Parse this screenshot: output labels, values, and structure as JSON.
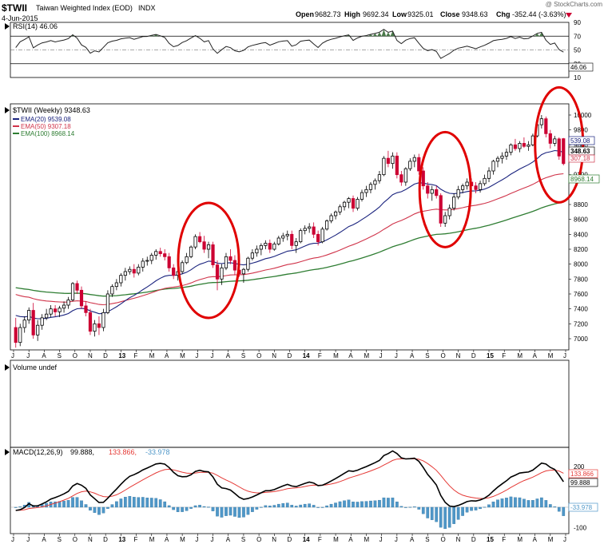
{
  "header": {
    "symbol": "$TWII",
    "name": "Taiwan Weighted Index (EOD)",
    "exchange": "INDX",
    "date": "4-Jun-2015",
    "watermark": "@ StockCharts.com",
    "quote": {
      "open_label": "Open",
      "open": "9682.73",
      "high_label": "High",
      "high": "9692.34",
      "low_label": "Low",
      "low": "9325.01",
      "close_label": "Close",
      "close": "9348.63",
      "chg_label": "Chg",
      "chg": "-352.44 (-3.63%)",
      "chg_icon": "triangle-down-icon"
    }
  },
  "colors": {
    "candle_up": "#000000",
    "candle_down": "#cc0033",
    "ema20": "#1a237e",
    "ema50": "#d0344a",
    "ema100": "#2e7d32",
    "rsi": "#222222",
    "rsi_overbought_fill": "#4a7a4a",
    "macd": "#000000",
    "signal": "#e53935",
    "histogram": "#4f97c8",
    "circle": "#e00000"
  },
  "rsi_panel": {
    "legend": "RSI(14) 46.06",
    "value_box": "46.06",
    "levels": [
      90,
      70,
      50,
      30,
      10
    ],
    "level_labels": [
      "90",
      "70",
      "50",
      "30",
      "10"
    ]
  },
  "price_panel": {
    "legend": {
      "main": "$TWII (Weekly) 9348.63",
      "ema20": "EMA(20) 9539.08",
      "ema50": "EMA(50) 9307.18",
      "ema100": "EMA(100) 8968.14"
    },
    "y_ticks": [
      "10000",
      "9800",
      "9600",
      "9200",
      "8800",
      "8600",
      "8400",
      "8200",
      "8000",
      "7800",
      "7600",
      "7400",
      "7200",
      "7000"
    ],
    "boxes": {
      "ema20": "539.08",
      "close": "348.63",
      "ema50": "307.18",
      "ema100": "8968.14"
    }
  },
  "volume_panel": {
    "legend": "Volume undef"
  },
  "macd_panel": {
    "legend_main": "MACD(12,26,9)",
    "legend_macd": "99.888,",
    "legend_signal": "133.866,",
    "legend_hist": "-33.978",
    "y_ticks": [
      "200",
      "0",
      "-100"
    ],
    "boxes": {
      "signal": "133.866",
      "macd": "99.888",
      "hist": "-33.978"
    }
  },
  "time_axis": [
    "J",
    "J",
    "A",
    "S",
    "O",
    "N",
    "D",
    "13",
    "F",
    "M",
    "A",
    "M",
    "J",
    "J",
    "A",
    "S",
    "O",
    "N",
    "D",
    "14",
    "F",
    "M",
    "A",
    "M",
    "J",
    "J",
    "A",
    "S",
    "O",
    "N",
    "D",
    "15",
    "F",
    "M",
    "A",
    "M",
    "J"
  ],
  "chart_data": {
    "type": "candlestick",
    "interval": "weekly",
    "period_start": "2012-06",
    "period_end": "2015-06-04",
    "ohlc_weekly_approx": [
      {
        "o": 7150,
        "h": 7280,
        "l": 6880,
        "c": 6950
      },
      {
        "o": 6950,
        "h": 7200,
        "l": 6900,
        "c": 7150
      },
      {
        "o": 7150,
        "h": 7300,
        "l": 7080,
        "c": 7250
      },
      {
        "o": 7250,
        "h": 7420,
        "l": 7200,
        "c": 7380
      },
      {
        "o": 7380,
        "h": 7480,
        "l": 7000,
        "c": 7050
      },
      {
        "o": 7050,
        "h": 7250,
        "l": 6970,
        "c": 7180
      },
      {
        "o": 7180,
        "h": 7330,
        "l": 7120,
        "c": 7280
      },
      {
        "o": 7280,
        "h": 7400,
        "l": 7250,
        "c": 7330
      },
      {
        "o": 7330,
        "h": 7450,
        "l": 7290,
        "c": 7400
      },
      {
        "o": 7400,
        "h": 7450,
        "l": 7300,
        "c": 7360
      },
      {
        "o": 7360,
        "h": 7440,
        "l": 7290,
        "c": 7410
      },
      {
        "o": 7410,
        "h": 7500,
        "l": 7350,
        "c": 7450
      },
      {
        "o": 7450,
        "h": 7560,
        "l": 7400,
        "c": 7520
      },
      {
        "o": 7520,
        "h": 7760,
        "l": 7500,
        "c": 7740
      },
      {
        "o": 7740,
        "h": 7780,
        "l": 7600,
        "c": 7650
      },
      {
        "o": 7650,
        "h": 7700,
        "l": 7400,
        "c": 7440
      },
      {
        "o": 7440,
        "h": 7500,
        "l": 7300,
        "c": 7350
      },
      {
        "o": 7350,
        "h": 7400,
        "l": 7050,
        "c": 7100
      },
      {
        "o": 7100,
        "h": 7250,
        "l": 7030,
        "c": 7200
      },
      {
        "o": 7200,
        "h": 7300,
        "l": 7050,
        "c": 7150
      },
      {
        "o": 7150,
        "h": 7400,
        "l": 7100,
        "c": 7350
      },
      {
        "o": 7350,
        "h": 7650,
        "l": 7330,
        "c": 7600
      },
      {
        "o": 7600,
        "h": 7730,
        "l": 7560,
        "c": 7700
      },
      {
        "o": 7700,
        "h": 7800,
        "l": 7650,
        "c": 7750
      },
      {
        "o": 7750,
        "h": 7880,
        "l": 7700,
        "c": 7850
      },
      {
        "o": 7850,
        "h": 7950,
        "l": 7780,
        "c": 7900
      },
      {
        "o": 7900,
        "h": 7970,
        "l": 7860,
        "c": 7930
      },
      {
        "o": 7930,
        "h": 8000,
        "l": 7820,
        "c": 7880
      },
      {
        "o": 7880,
        "h": 8000,
        "l": 7850,
        "c": 7960
      },
      {
        "o": 7960,
        "h": 8080,
        "l": 7900,
        "c": 8040
      },
      {
        "o": 8040,
        "h": 8100,
        "l": 7980,
        "c": 8050
      },
      {
        "o": 8050,
        "h": 8150,
        "l": 8000,
        "c": 8120
      },
      {
        "o": 8120,
        "h": 8200,
        "l": 8060,
        "c": 8170
      },
      {
        "o": 8170,
        "h": 8220,
        "l": 8100,
        "c": 8140
      },
      {
        "o": 8140,
        "h": 8200,
        "l": 8050,
        "c": 8100
      },
      {
        "o": 8100,
        "h": 8150,
        "l": 7900,
        "c": 7950
      },
      {
        "o": 7950,
        "h": 8000,
        "l": 7800,
        "c": 7850
      },
      {
        "o": 7850,
        "h": 7950,
        "l": 7780,
        "c": 7900
      },
      {
        "o": 7900,
        "h": 8050,
        "l": 7870,
        "c": 8020
      },
      {
        "o": 8020,
        "h": 8150,
        "l": 8000,
        "c": 8100
      },
      {
        "o": 8100,
        "h": 8250,
        "l": 8080,
        "c": 8230
      },
      {
        "o": 8230,
        "h": 8400,
        "l": 8200,
        "c": 8370
      },
      {
        "o": 8370,
        "h": 8430,
        "l": 8280,
        "c": 8300
      },
      {
        "o": 8300,
        "h": 8380,
        "l": 8150,
        "c": 8200
      },
      {
        "o": 8200,
        "h": 8300,
        "l": 8080,
        "c": 8260
      },
      {
        "o": 8260,
        "h": 8300,
        "l": 7950,
        "c": 7990
      },
      {
        "o": 7990,
        "h": 8050,
        "l": 7650,
        "c": 7800
      },
      {
        "o": 7800,
        "h": 8000,
        "l": 7720,
        "c": 7950
      },
      {
        "o": 7950,
        "h": 8150,
        "l": 7920,
        "c": 8100
      },
      {
        "o": 8100,
        "h": 8200,
        "l": 8000,
        "c": 8050
      },
      {
        "o": 8050,
        "h": 8120,
        "l": 7850,
        "c": 7920
      },
      {
        "o": 7920,
        "h": 8000,
        "l": 7830,
        "c": 7870
      },
      {
        "o": 7870,
        "h": 7950,
        "l": 7750,
        "c": 7930
      },
      {
        "o": 7930,
        "h": 8100,
        "l": 7900,
        "c": 8080
      },
      {
        "o": 8080,
        "h": 8200,
        "l": 8050,
        "c": 8150
      },
      {
        "o": 8150,
        "h": 8250,
        "l": 8100,
        "c": 8200
      },
      {
        "o": 8200,
        "h": 8280,
        "l": 8120,
        "c": 8250
      },
      {
        "o": 8250,
        "h": 8320,
        "l": 8200,
        "c": 8280
      },
      {
        "o": 8280,
        "h": 8330,
        "l": 8150,
        "c": 8200
      },
      {
        "o": 8200,
        "h": 8300,
        "l": 8180,
        "c": 8270
      },
      {
        "o": 8270,
        "h": 8380,
        "l": 8250,
        "c": 8350
      },
      {
        "o": 8350,
        "h": 8420,
        "l": 8300,
        "c": 8380
      },
      {
        "o": 8380,
        "h": 8450,
        "l": 8320,
        "c": 8400
      },
      {
        "o": 8400,
        "h": 8450,
        "l": 8200,
        "c": 8250
      },
      {
        "o": 8250,
        "h": 8350,
        "l": 8150,
        "c": 8300
      },
      {
        "o": 8300,
        "h": 8480,
        "l": 8280,
        "c": 8450
      },
      {
        "o": 8450,
        "h": 8520,
        "l": 8400,
        "c": 8480
      },
      {
        "o": 8480,
        "h": 8550,
        "l": 8420,
        "c": 8500
      },
      {
        "o": 8500,
        "h": 8560,
        "l": 8350,
        "c": 8400
      },
      {
        "o": 8400,
        "h": 8450,
        "l": 8250,
        "c": 8300
      },
      {
        "o": 8300,
        "h": 8500,
        "l": 8280,
        "c": 8470
      },
      {
        "o": 8470,
        "h": 8600,
        "l": 8450,
        "c": 8580
      },
      {
        "o": 8580,
        "h": 8680,
        "l": 8550,
        "c": 8650
      },
      {
        "o": 8650,
        "h": 8720,
        "l": 8600,
        "c": 8700
      },
      {
        "o": 8700,
        "h": 8800,
        "l": 8660,
        "c": 8770
      },
      {
        "o": 8770,
        "h": 8850,
        "l": 8720,
        "c": 8830
      },
      {
        "o": 8830,
        "h": 8900,
        "l": 8750,
        "c": 8880
      },
      {
        "o": 8880,
        "h": 8920,
        "l": 8700,
        "c": 8750
      },
      {
        "o": 8750,
        "h": 8900,
        "l": 8720,
        "c": 8870
      },
      {
        "o": 8870,
        "h": 9000,
        "l": 8840,
        "c": 8960
      },
      {
        "o": 8960,
        "h": 9050,
        "l": 8900,
        "c": 9000
      },
      {
        "o": 9000,
        "h": 9100,
        "l": 8950,
        "c": 9070
      },
      {
        "o": 9070,
        "h": 9150,
        "l": 9000,
        "c": 9120
      },
      {
        "o": 9120,
        "h": 9250,
        "l": 9080,
        "c": 9200
      },
      {
        "o": 9200,
        "h": 9450,
        "l": 9180,
        "c": 9420
      },
      {
        "o": 9420,
        "h": 9520,
        "l": 9300,
        "c": 9350
      },
      {
        "o": 9350,
        "h": 9500,
        "l": 9280,
        "c": 9450
      },
      {
        "o": 9450,
        "h": 9500,
        "l": 9150,
        "c": 9200
      },
      {
        "o": 9200,
        "h": 9250,
        "l": 9050,
        "c": 9100
      },
      {
        "o": 9100,
        "h": 9300,
        "l": 9050,
        "c": 9280
      },
      {
        "o": 9280,
        "h": 9420,
        "l": 9250,
        "c": 9380
      },
      {
        "o": 9380,
        "h": 9470,
        "l": 9300,
        "c": 9430
      },
      {
        "o": 9430,
        "h": 9480,
        "l": 9200,
        "c": 9250
      },
      {
        "o": 9250,
        "h": 9300,
        "l": 9000,
        "c": 9050
      },
      {
        "o": 9050,
        "h": 9100,
        "l": 8880,
        "c": 8950
      },
      {
        "o": 8950,
        "h": 9050,
        "l": 8850,
        "c": 9000
      },
      {
        "o": 9000,
        "h": 9050,
        "l": 8880,
        "c": 8920
      },
      {
        "o": 8920,
        "h": 8950,
        "l": 8500,
        "c": 8550
      },
      {
        "o": 8550,
        "h": 8700,
        "l": 8500,
        "c": 8650
      },
      {
        "o": 8650,
        "h": 8800,
        "l": 8600,
        "c": 8750
      },
      {
        "o": 8750,
        "h": 8950,
        "l": 8720,
        "c": 8900
      },
      {
        "o": 8900,
        "h": 9050,
        "l": 8870,
        "c": 9000
      },
      {
        "o": 9000,
        "h": 9080,
        "l": 8950,
        "c": 9050
      },
      {
        "o": 9050,
        "h": 9150,
        "l": 9000,
        "c": 9100
      },
      {
        "o": 9100,
        "h": 9150,
        "l": 9000,
        "c": 9050
      },
      {
        "o": 9050,
        "h": 9100,
        "l": 8950,
        "c": 9000
      },
      {
        "o": 9000,
        "h": 9120,
        "l": 8960,
        "c": 9080
      },
      {
        "o": 9080,
        "h": 9200,
        "l": 9050,
        "c": 9150
      },
      {
        "o": 9150,
        "h": 9300,
        "l": 9100,
        "c": 9250
      },
      {
        "o": 9250,
        "h": 9400,
        "l": 9200,
        "c": 9380
      },
      {
        "o": 9380,
        "h": 9450,
        "l": 9300,
        "c": 9420
      },
      {
        "o": 9420,
        "h": 9500,
        "l": 9350,
        "c": 9450
      },
      {
        "o": 9450,
        "h": 9550,
        "l": 9400,
        "c": 9500
      },
      {
        "o": 9500,
        "h": 9620,
        "l": 9460,
        "c": 9600
      },
      {
        "o": 9600,
        "h": 9680,
        "l": 9520,
        "c": 9550
      },
      {
        "o": 9550,
        "h": 9650,
        "l": 9500,
        "c": 9620
      },
      {
        "o": 9620,
        "h": 9700,
        "l": 9560,
        "c": 9580
      },
      {
        "o": 9580,
        "h": 9650,
        "l": 9520,
        "c": 9600
      },
      {
        "o": 9600,
        "h": 9750,
        "l": 9580,
        "c": 9720
      },
      {
        "o": 9720,
        "h": 9900,
        "l": 9700,
        "c": 9870
      },
      {
        "o": 9870,
        "h": 10000,
        "l": 9820,
        "c": 9950
      },
      {
        "o": 9950,
        "h": 9980,
        "l": 9700,
        "c": 9750
      },
      {
        "o": 9750,
        "h": 9800,
        "l": 9550,
        "c": 9620
      },
      {
        "o": 9620,
        "h": 9720,
        "l": 9580,
        "c": 9680
      },
      {
        "o": 9680,
        "h": 9700,
        "l": 9400,
        "c": 9450
      },
      {
        "o": 9682.73,
        "h": 9692.34,
        "l": 9325.01,
        "c": 9348.63
      }
    ],
    "price_ylim": [
      6850,
      10150
    ],
    "rsi_ylim": [
      10,
      90
    ],
    "macd_ylim": [
      -130,
      240
    ],
    "markers": [
      "Mid-2013 top circled",
      "Q3-Q4 2014 drop circled",
      "Q2 2015 top circled"
    ]
  }
}
